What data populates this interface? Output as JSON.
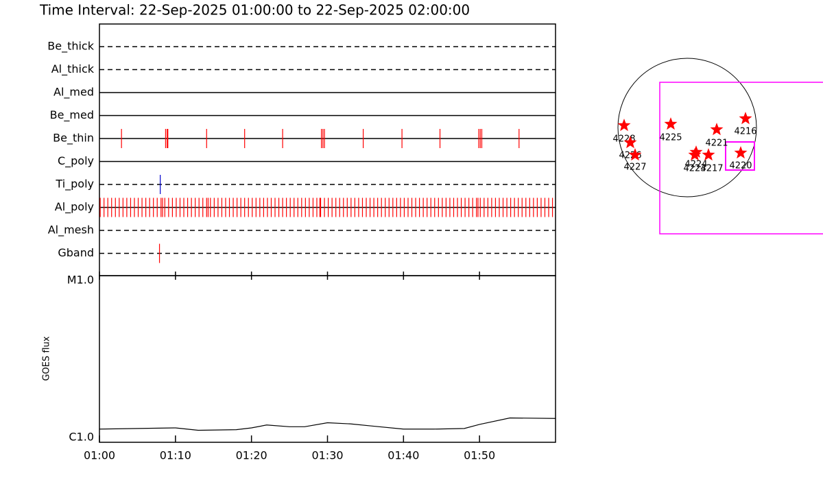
{
  "chart_data": [
    {
      "type": "timeline",
      "title": "Time Interval: 22-Sep-2025 01:00:00 to 22-Sep-2025 02:00:00",
      "xlim": [
        0,
        60
      ],
      "rows": [
        {
          "name": "Be_thick",
          "style": "dashed",
          "color": "#ff0000",
          "events": []
        },
        {
          "name": "Al_thick",
          "style": "dashed",
          "color": "#ff0000",
          "events": []
        },
        {
          "name": "Al_med",
          "style": "solid",
          "color": "#ff0000",
          "events": []
        },
        {
          "name": "Be_med",
          "style": "solid",
          "color": "#ff0000",
          "events": []
        },
        {
          "name": "Be_thin",
          "style": "solid",
          "color": "#ff0000",
          "events": [
            2.9,
            8.7,
            8.9,
            9.0,
            14.1,
            19.1,
            24.1,
            29.2,
            29.4,
            29.6,
            34.7,
            39.8,
            44.8,
            49.9,
            50.1,
            50.3,
            55.2
          ]
        },
        {
          "name": "C_poly",
          "style": "solid",
          "color": "#ff0000",
          "events": []
        },
        {
          "name": "Ti_poly",
          "style": "dashed",
          "color": "#0000cc",
          "events": [
            8.0
          ]
        },
        {
          "name": "Al_poly",
          "style": "solid",
          "color": "#ff0000",
          "events": [
            0.1,
            0.6,
            1.1,
            1.6,
            2.1,
            2.6,
            3.1,
            3.6,
            4.1,
            4.6,
            5.1,
            5.6,
            6.1,
            6.6,
            7.1,
            7.6,
            8.1,
            8.3,
            8.6,
            9.1,
            9.6,
            10.1,
            10.6,
            11.1,
            11.6,
            12.1,
            12.6,
            13.1,
            13.6,
            14.1,
            14.3,
            14.6,
            15.1,
            15.6,
            16.1,
            16.6,
            17.1,
            17.6,
            18.1,
            18.6,
            19.1,
            19.6,
            20.1,
            20.6,
            21.1,
            21.6,
            22.1,
            22.6,
            23.1,
            23.6,
            24.1,
            24.6,
            25.1,
            25.6,
            26.1,
            26.6,
            27.1,
            27.6,
            28.1,
            28.6,
            29.0,
            29.1,
            29.6,
            30.1,
            30.6,
            31.1,
            31.6,
            32.1,
            32.6,
            33.1,
            33.6,
            34.1,
            34.6,
            35.1,
            35.6,
            36.1,
            36.6,
            37.1,
            37.6,
            38.1,
            38.6,
            39.1,
            39.6,
            40.1,
            40.6,
            41.1,
            41.6,
            42.1,
            42.6,
            43.1,
            43.6,
            44.1,
            44.6,
            45.1,
            45.6,
            46.1,
            46.6,
            47.1,
            47.6,
            48.1,
            48.6,
            49.1,
            49.6,
            49.8,
            50.1,
            50.6,
            51.1,
            51.6,
            52.1,
            52.6,
            53.1,
            53.6,
            54.1,
            54.6,
            55.1,
            55.6,
            56.1,
            56.6,
            57.1,
            57.6,
            58.1,
            58.6,
            59.1,
            59.6
          ]
        },
        {
          "name": "Al_mesh",
          "style": "dashed",
          "color": "#ff0000",
          "events": []
        },
        {
          "name": "Gband",
          "style": "dashed",
          "color": "#ff0000",
          "events": [
            7.9
          ]
        }
      ]
    },
    {
      "type": "line",
      "ylabel": "GOES flux",
      "color": "#000000",
      "log": true,
      "x": [
        0,
        5,
        10,
        13,
        18,
        20,
        22,
        25,
        27,
        30,
        33,
        36,
        40,
        44,
        48,
        50,
        54,
        60
      ],
      "values": [
        1.2e-06,
        1.21e-06,
        1.22e-06,
        1.18e-06,
        1.19e-06,
        1.22e-06,
        1.27e-06,
        1.24e-06,
        1.24e-06,
        1.31e-06,
        1.29e-06,
        1.25e-06,
        1.2e-06,
        1.2e-06,
        1.21e-06,
        1.28e-06,
        1.4e-06,
        1.39e-06
      ],
      "xlim": [
        0,
        60
      ],
      "xticks": [
        {
          "value": 0,
          "label": "01:00"
        },
        {
          "value": 10,
          "label": "01:10"
        },
        {
          "value": 20,
          "label": "01:20"
        },
        {
          "value": 30,
          "label": "01:30"
        },
        {
          "value": 40,
          "label": "01:40"
        },
        {
          "value": 50,
          "label": "01:50"
        }
      ],
      "ylim": [
        1e-06,
        1e-05
      ],
      "yticks": [
        {
          "value": 1e-06,
          "label": "C1.0"
        },
        {
          "value": 1e-05,
          "label": "M1.0"
        }
      ]
    },
    {
      "type": "map",
      "disk_color": "#000000",
      "box_color": "#ff00ff",
      "star_color": "#ff0000",
      "regions": [
        "4228",
        "4226",
        "4227",
        "4225",
        "4221",
        "4216",
        "4224",
        "4223",
        "4217",
        "4220"
      ]
    }
  ]
}
